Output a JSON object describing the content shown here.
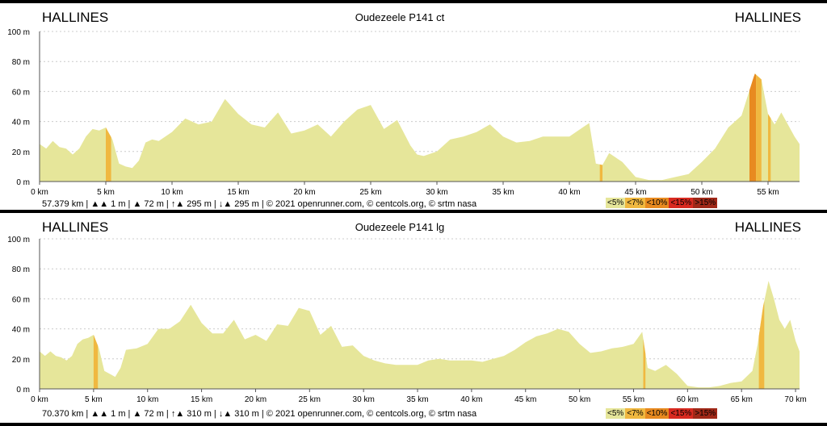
{
  "colors": {
    "fill": "#e6e69a",
    "grade7": "#f0b840",
    "grade10": "#e88a20",
    "grid": "#cccccc",
    "legend": [
      "#e6e69a",
      "#f0b840",
      "#e88a20",
      "#d82a20",
      "#a02818"
    ]
  },
  "legend_labels": [
    "<5%",
    "<7%",
    "<10%",
    "<15%",
    ">15%"
  ],
  "chart_data": [
    {
      "type": "area",
      "title": "Oudezeele P141 ct",
      "start_label": "HALLINES",
      "end_label": "HALLINES",
      "y_ticks": [
        0,
        20,
        40,
        60,
        80,
        100
      ],
      "y_tick_labels": [
        "0 m",
        "20 m",
        "40 m",
        "60 m",
        "80 m",
        "100 m"
      ],
      "ylim": [
        0,
        100
      ],
      "xlim": [
        0,
        57.379
      ],
      "x_ticks": [
        0,
        5,
        10,
        15,
        20,
        25,
        30,
        35,
        40,
        45,
        50,
        55
      ],
      "x_tick_labels": [
        "0 km",
        "5 km",
        "10 km",
        "15 km",
        "20 km",
        "25 km",
        "30 km",
        "35 km",
        "40 km",
        "45 km",
        "50 km",
        "55 km"
      ],
      "x": [
        0,
        0.5,
        1,
        1.5,
        2,
        2.5,
        3,
        3.5,
        4,
        4.5,
        5,
        5.5,
        6,
        6.5,
        7,
        7.5,
        8,
        8.5,
        9,
        10,
        11,
        12,
        13,
        14,
        15,
        16,
        17,
        18,
        19,
        20,
        21,
        22,
        23,
        24,
        25,
        26,
        27,
        28,
        28.5,
        29,
        30,
        31,
        32,
        33,
        34,
        35,
        36,
        37,
        38,
        39,
        40,
        41,
        41.5,
        42,
        42.5,
        43,
        44,
        45,
        46,
        47,
        48,
        49,
        50,
        51,
        52,
        53,
        53.5,
        54,
        54.5,
        55,
        55.5,
        56,
        57,
        57.379
      ],
      "elevation": [
        25,
        22,
        27,
        23,
        22,
        18,
        22,
        30,
        35,
        34,
        36,
        28,
        12,
        10,
        9,
        14,
        26,
        28,
        27,
        33,
        42,
        38,
        40,
        55,
        45,
        38,
        36,
        46,
        32,
        34,
        38,
        30,
        40,
        48,
        51,
        35,
        41,
        24,
        18,
        17,
        20,
        28,
        30,
        33,
        38,
        30,
        26,
        27,
        30,
        30,
        30,
        36,
        39,
        12,
        11,
        19,
        13,
        3,
        1,
        1,
        3,
        5,
        13,
        22,
        36,
        44,
        58,
        72,
        68,
        45,
        38,
        46,
        30,
        25
      ],
      "grade_segments": [
        {
          "from_km": 5.0,
          "to_km": 5.4,
          "grade": "<7%"
        },
        {
          "from_km": 42.3,
          "to_km": 42.5,
          "grade": "<7%"
        },
        {
          "from_km": 53.6,
          "to_km": 54.1,
          "grade": "<10%"
        },
        {
          "from_km": 54.1,
          "to_km": 54.5,
          "grade": "<7%"
        },
        {
          "from_km": 55.0,
          "to_km": 55.2,
          "grade": "<7%"
        }
      ],
      "footer": "57.379 km | ▲▲ 1 m | ▲ 72 m | ↑▲ 295 m | ↓▲ 295 m | © 2021 openrunner.com, © centcols.org, © srtm nasa"
    },
    {
      "type": "area",
      "title": "Oudezeele P141 lg",
      "start_label": "HALLINES",
      "end_label": "HALLINES",
      "y_ticks": [
        0,
        20,
        40,
        60,
        80,
        100
      ],
      "y_tick_labels": [
        "0 m",
        "20 m",
        "40 m",
        "60 m",
        "80 m",
        "100 m"
      ],
      "ylim": [
        0,
        100
      ],
      "xlim": [
        0,
        70.37
      ],
      "x_ticks": [
        0,
        5,
        10,
        15,
        20,
        25,
        30,
        35,
        40,
        45,
        50,
        55,
        60,
        65,
        70
      ],
      "x_tick_labels": [
        "0 km",
        "5 km",
        "10 km",
        "15 km",
        "20 km",
        "25 km",
        "30 km",
        "35 km",
        "40 km",
        "45 km",
        "50 km",
        "55 km",
        "60 km",
        "65 km",
        "70 km"
      ],
      "x": [
        0,
        0.5,
        1,
        1.5,
        2,
        2.5,
        3,
        3.5,
        4,
        4.5,
        5,
        5.5,
        6,
        6.5,
        7,
        7.5,
        8,
        9,
        10,
        11,
        12,
        13,
        14,
        15,
        16,
        17,
        18,
        19,
        20,
        21,
        22,
        23,
        24,
        25,
        26,
        27,
        28,
        29,
        30,
        31,
        32,
        33,
        34,
        35,
        36,
        37,
        38,
        39,
        40,
        41,
        42,
        43,
        44,
        45,
        46,
        47,
        48,
        49,
        50,
        51,
        52,
        53,
        54,
        55,
        55.8,
        56.3,
        57,
        58,
        59,
        60,
        61,
        62,
        63,
        64,
        65,
        66,
        66.5,
        67,
        67.5,
        68,
        68.5,
        69,
        69.5,
        70,
        70.37
      ],
      "elevation": [
        25,
        22,
        25,
        22,
        21,
        19,
        22,
        30,
        33,
        34,
        36,
        27,
        12,
        10,
        8,
        14,
        26,
        27,
        30,
        40,
        40,
        45,
        56,
        44,
        37,
        37,
        46,
        33,
        36,
        32,
        43,
        42,
        54,
        52,
        36,
        42,
        28,
        29,
        22,
        19,
        17,
        16,
        16,
        16,
        19,
        20,
        19,
        19,
        19,
        18,
        20,
        22,
        26,
        31,
        35,
        37,
        40,
        38,
        30,
        24,
        25,
        27,
        28,
        30,
        38,
        14,
        12,
        16,
        10,
        2,
        1,
        1,
        2,
        4,
        5,
        12,
        30,
        55,
        72,
        60,
        46,
        40,
        46,
        32,
        25
      ],
      "grade_segments": [
        {
          "from_km": 5.0,
          "to_km": 5.4,
          "grade": "<7%"
        },
        {
          "from_km": 55.9,
          "to_km": 56.1,
          "grade": "<7%"
        },
        {
          "from_km": 66.6,
          "to_km": 67.1,
          "grade": "<7%"
        }
      ],
      "footer": "70.370 km | ▲▲ 1 m | ▲ 72 m | ↑▲ 310 m | ↓▲ 310 m | © 2021 openrunner.com, © centcols.org, © srtm nasa"
    }
  ]
}
